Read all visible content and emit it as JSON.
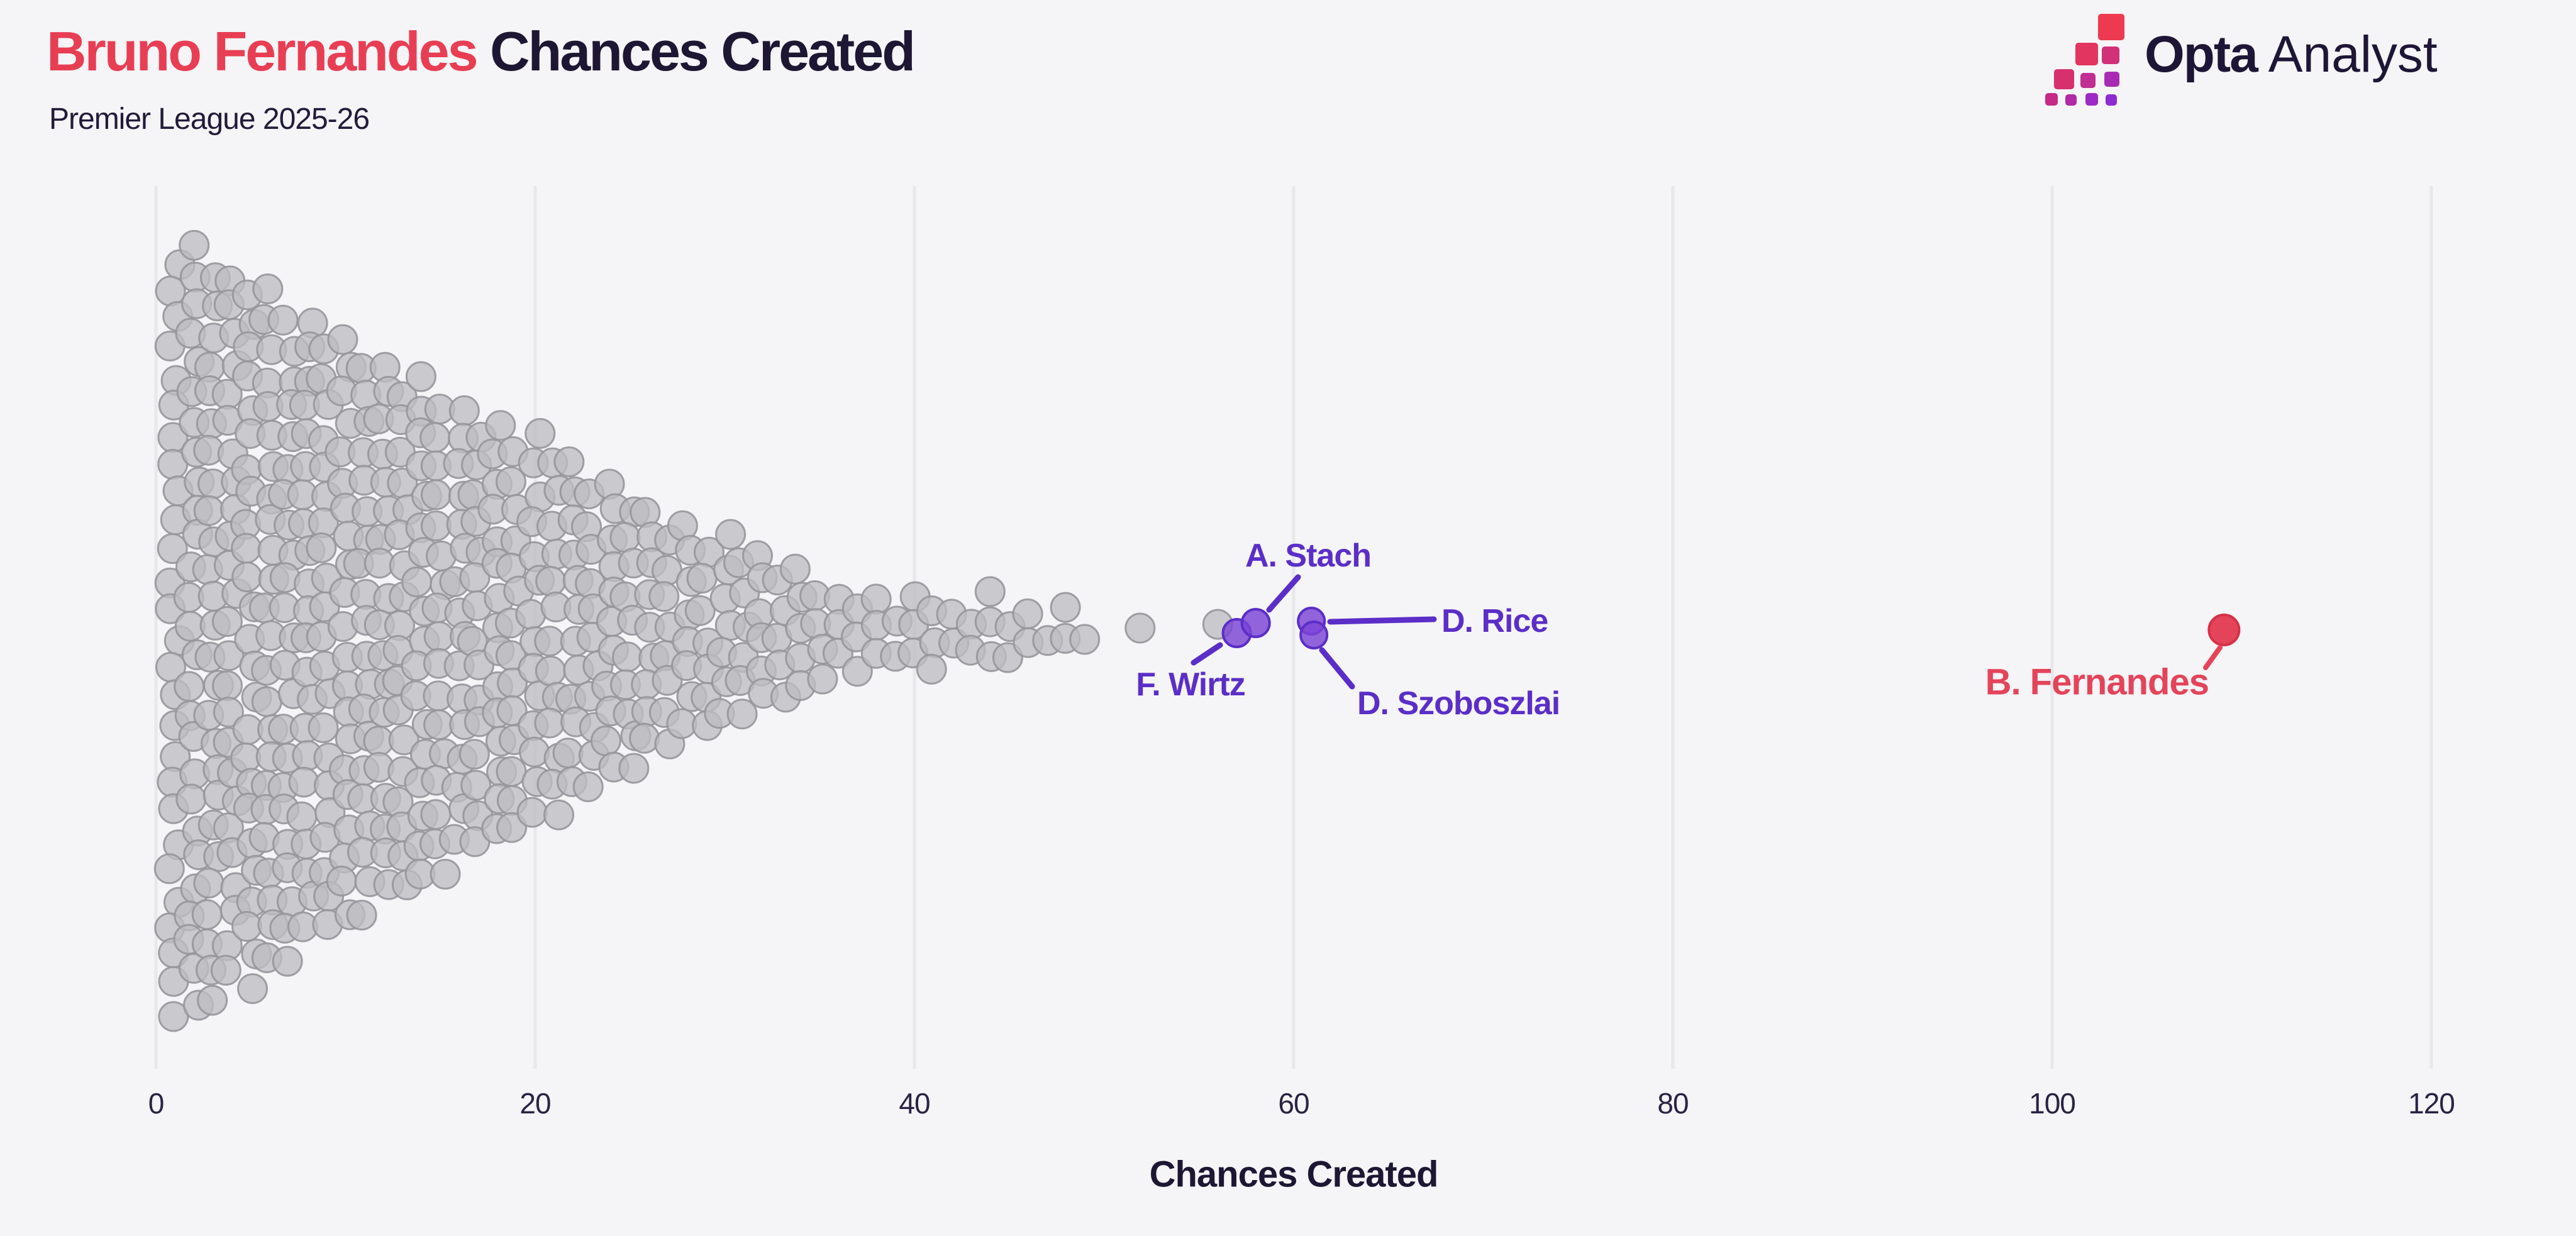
{
  "header": {
    "title_highlight": "Bruno Fernandes",
    "title_rest": " Chances Created",
    "subtitle": "Premier League 2025-26"
  },
  "logo": {
    "brand_bold": "Opta",
    "brand_light": "Analyst"
  },
  "colors": {
    "background": "#f5f4f6",
    "grid": "#e8e7ea",
    "title_accent": "#e83e54",
    "title_dark": "#1d1733",
    "dot_gray_fill": "#bebdc1",
    "dot_gray_stroke": "#97969a",
    "purple_fill": "#7b44d6",
    "purple_stroke": "#5b2ec8",
    "red_fill": "#e4445a",
    "red_stroke": "#d63048",
    "tick_text": "#2a2344"
  },
  "chart_data": {
    "type": "scatter",
    "variant": "beeswarm",
    "title": "Bruno Fernandes Chances Created",
    "subtitle": "Premier League 2025-26",
    "xlabel": "Chances Created",
    "ylabel": "",
    "xlim": [
      0,
      124
    ],
    "x_ticks": [
      0,
      20,
      40,
      60,
      80,
      100,
      120
    ],
    "grid": "vertical-only",
    "legend": "none",
    "swarm_histogram": [
      [
        1,
        27
      ],
      [
        2,
        27
      ],
      [
        3,
        26
      ],
      [
        4,
        25
      ],
      [
        5,
        25
      ],
      [
        6,
        24
      ],
      [
        7,
        23
      ],
      [
        8,
        22
      ],
      [
        9,
        21
      ],
      [
        10,
        21
      ],
      [
        11,
        20
      ],
      [
        12,
        19
      ],
      [
        13,
        18
      ],
      [
        14,
        18
      ],
      [
        15,
        17
      ],
      [
        16,
        16
      ],
      [
        17,
        15
      ],
      [
        18,
        15
      ],
      [
        19,
        14
      ],
      [
        20,
        14
      ],
      [
        21,
        13
      ],
      [
        22,
        12
      ],
      [
        23,
        11
      ],
      [
        24,
        11
      ],
      [
        25,
        10
      ],
      [
        26,
        9
      ],
      [
        27,
        8
      ],
      [
        28,
        8
      ],
      [
        29,
        7
      ],
      [
        30,
        7
      ],
      [
        31,
        6
      ],
      [
        32,
        6
      ],
      [
        33,
        5
      ],
      [
        34,
        5
      ],
      [
        35,
        4
      ],
      [
        36,
        3
      ],
      [
        37,
        3
      ],
      [
        38,
        3
      ],
      [
        39,
        2
      ],
      [
        40,
        3
      ],
      [
        41,
        3
      ],
      [
        42,
        2
      ],
      [
        43,
        2
      ],
      [
        44,
        3
      ],
      [
        45,
        2
      ],
      [
        46,
        2
      ],
      [
        47,
        1
      ],
      [
        48,
        2
      ],
      [
        49,
        1
      ],
      [
        52,
        1
      ],
      [
        56,
        1
      ]
    ],
    "highlighted": [
      {
        "name": "F. Wirtz",
        "value": 57,
        "color": "purple"
      },
      {
        "name": "A. Stach",
        "value": 58,
        "color": "purple"
      },
      {
        "name": "D. Rice",
        "value": 61,
        "color": "purple"
      },
      {
        "name": "D. Szoboszlai",
        "value": 61,
        "color": "purple"
      },
      {
        "name": "B. Fernandes",
        "value": 109,
        "color": "red"
      }
    ]
  }
}
